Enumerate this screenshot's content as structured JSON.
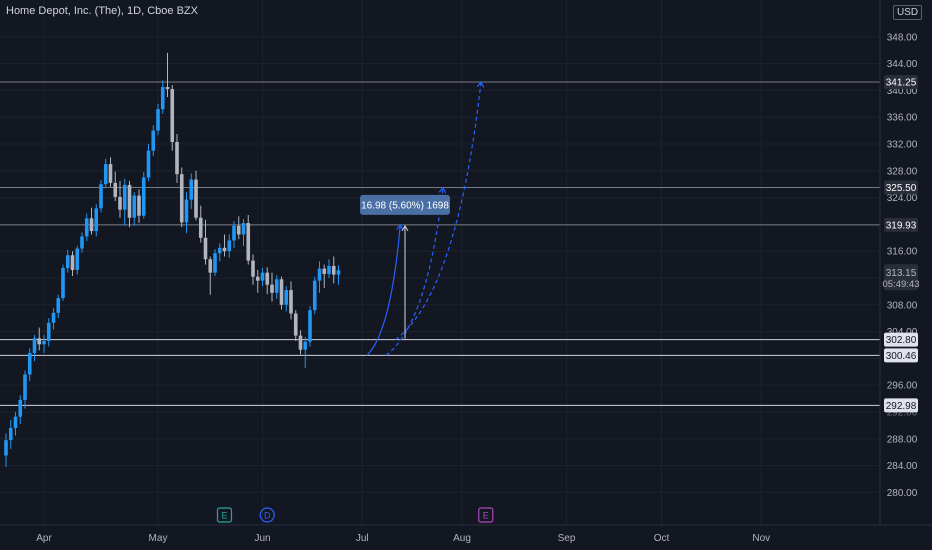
{
  "header": {
    "title": "Home Depot, Inc. (The), 1D, Cboe BZX",
    "currency": "USD"
  },
  "colors": {
    "background": "#131722",
    "grid": "#1e222d",
    "axis_text": "#b2b5be",
    "up": "#2196f3",
    "down": "#b2b5be",
    "level_line": "#d1d4dc",
    "projection": "#2962ff",
    "measure_box": "#4a6fa5"
  },
  "chart_data": {
    "type": "candlestick",
    "symbol": "HD",
    "timeframe": "1D",
    "ylim": [
      276,
      352
    ],
    "y_ticks": [
      280,
      284,
      288,
      292,
      296,
      300,
      304,
      308,
      312,
      316,
      320,
      324,
      328,
      332,
      336,
      340,
      344,
      348
    ],
    "y_tick_labels": [
      "280.00",
      "284.00",
      "288.00",
      "292.00",
      "296.00",
      "300.00",
      "304.00",
      "308.00",
      "312.00",
      "316.00",
      "320.00",
      "324.00",
      "328.00",
      "332.00",
      "336.00",
      "340.00",
      "344.00",
      "348.00"
    ],
    "x_axis": {
      "months": [
        "Apr",
        "May",
        "Jun",
        "Jul",
        "Aug",
        "Sep",
        "Oct",
        "Nov"
      ],
      "month_bar_index": [
        0,
        24,
        46,
        67,
        88,
        110,
        130,
        151
      ]
    },
    "bar_start_index": -8,
    "candles": [
      [
        285.5,
        288.8,
        283.8,
        287.8
      ],
      [
        287.8,
        290.8,
        286.5,
        289.6
      ],
      [
        289.6,
        292.0,
        288.5,
        291.3
      ],
      [
        291.3,
        294.5,
        290.2,
        293.8
      ],
      [
        293.8,
        298.2,
        292.5,
        297.6
      ],
      [
        297.6,
        301.5,
        296.6,
        300.8
      ],
      [
        300.8,
        303.5,
        299.6,
        303.0
      ],
      [
        303.0,
        304.6,
        301.2,
        302.1
      ],
      [
        302.1,
        303.5,
        300.8,
        302.6
      ],
      [
        302.6,
        306.0,
        301.8,
        305.3
      ],
      [
        305.3,
        307.5,
        304.3,
        306.8
      ],
      [
        306.8,
        309.5,
        306.0,
        309.0
      ],
      [
        309.0,
        314.0,
        308.6,
        313.5
      ],
      [
        313.5,
        316.2,
        312.8,
        315.4
      ],
      [
        315.4,
        316.0,
        312.3,
        313.2
      ],
      [
        313.2,
        316.8,
        312.5,
        316.4
      ],
      [
        316.4,
        318.8,
        315.8,
        318.2
      ],
      [
        318.2,
        321.6,
        317.5,
        320.9
      ],
      [
        320.9,
        322.5,
        318.5,
        319.0
      ],
      [
        319.0,
        323.0,
        318.2,
        322.4
      ],
      [
        322.4,
        326.6,
        321.8,
        326.0
      ],
      [
        326.0,
        329.8,
        325.5,
        329.0
      ],
      [
        329.0,
        330.0,
        325.6,
        326.2
      ],
      [
        326.2,
        327.9,
        323.5,
        324.1
      ],
      [
        324.1,
        326.5,
        321.0,
        322.2
      ],
      [
        322.2,
        326.8,
        319.8,
        325.9
      ],
      [
        325.9,
        326.5,
        319.6,
        321.0
      ],
      [
        321.0,
        324.8,
        319.8,
        324.3
      ],
      [
        324.3,
        325.2,
        320.2,
        321.3
      ],
      [
        321.3,
        327.8,
        320.9,
        327.0
      ],
      [
        327.0,
        332.0,
        326.5,
        331.0
      ],
      [
        331.0,
        334.8,
        330.2,
        334.0
      ],
      [
        334.0,
        338.0,
        333.3,
        337.2
      ],
      [
        337.2,
        341.5,
        336.5,
        340.5
      ],
      [
        340.5,
        345.6,
        339.0,
        340.2
      ],
      [
        340.2,
        340.8,
        331.0,
        332.3
      ],
      [
        332.3,
        333.5,
        326.2,
        327.5
      ],
      [
        327.5,
        328.5,
        319.6,
        320.3
      ],
      [
        320.3,
        324.8,
        318.7,
        323.7
      ],
      [
        323.7,
        327.6,
        322.3,
        326.7
      ],
      [
        326.7,
        328.0,
        320.6,
        321.0
      ],
      [
        321.0,
        322.8,
        317.3,
        318.0
      ],
      [
        318.0,
        320.7,
        314.0,
        314.8
      ],
      [
        314.8,
        315.2,
        309.5,
        312.8
      ],
      [
        312.8,
        316.3,
        312.3,
        315.7
      ],
      [
        315.7,
        317.2,
        314.5,
        316.5
      ],
      [
        316.5,
        318.5,
        315.2,
        316.0
      ],
      [
        316.0,
        318.5,
        315.0,
        317.6
      ],
      [
        317.6,
        320.5,
        316.5,
        319.8
      ],
      [
        319.8,
        321.2,
        317.8,
        318.5
      ],
      [
        318.5,
        320.8,
        316.8,
        320.2
      ],
      [
        320.2,
        321.4,
        314.0,
        314.6
      ],
      [
        314.6,
        315.5,
        311.0,
        312.2
      ],
      [
        312.2,
        313.2,
        309.8,
        311.6
      ],
      [
        311.6,
        313.5,
        310.8,
        312.8
      ],
      [
        312.8,
        313.6,
        309.6,
        311.0
      ],
      [
        311.0,
        312.8,
        308.5,
        309.8
      ],
      [
        309.8,
        312.4,
        308.9,
        311.8
      ],
      [
        311.8,
        312.2,
        307.3,
        308.0
      ],
      [
        308.0,
        310.8,
        307.0,
        310.2
      ],
      [
        310.2,
        311.5,
        305.8,
        306.7
      ],
      [
        306.7,
        307.2,
        302.6,
        303.4
      ],
      [
        303.4,
        304.2,
        300.6,
        301.3
      ],
      [
        301.3,
        303.2,
        298.6,
        302.5
      ],
      [
        302.5,
        307.8,
        301.8,
        307.2
      ],
      [
        307.2,
        312.2,
        306.6,
        311.6
      ],
      [
        311.6,
        314.5,
        309.8,
        313.4
      ],
      [
        313.4,
        314.0,
        310.5,
        312.6
      ],
      [
        312.6,
        314.8,
        312.0,
        313.8
      ],
      [
        313.8,
        315.2,
        311.2,
        312.5
      ],
      [
        312.5,
        313.9,
        311.0,
        313.15
      ]
    ],
    "levels": [
      341.25,
      325.5,
      319.93,
      302.8,
      300.46,
      292.98
    ],
    "level_labels": [
      "341.25",
      "325.50",
      "319.93",
      "302.80",
      "300.46",
      "292.98"
    ],
    "last_price": 313.15,
    "last_price_label": "313.15",
    "countdown_label": "05:49:43",
    "measure": {
      "label": "16.98 (5.60%) 1698",
      "from_price": 302.95,
      "to_price": 319.93,
      "x_bar_index": 76
    },
    "projections": [
      {
        "style": "solid",
        "start_bar": 68,
        "start_price": 300.46,
        "end_bar": 75,
        "end_price": 319.93
      },
      {
        "style": "dashed",
        "start_bar": 72,
        "start_price": 300.46,
        "end_bar": 84,
        "end_price": 325.5
      },
      {
        "style": "dashed",
        "start_bar": 74,
        "start_price": 302.8,
        "end_bar": 92,
        "end_price": 341.25
      }
    ],
    "event_markers": [
      {
        "label": "E",
        "bar_index": 38,
        "color": "#26a69a"
      },
      {
        "label": "D",
        "bar_index": 47,
        "color": "#2962ff"
      },
      {
        "label": "E",
        "bar_index": 93,
        "color": "#ab47bc"
      }
    ]
  }
}
